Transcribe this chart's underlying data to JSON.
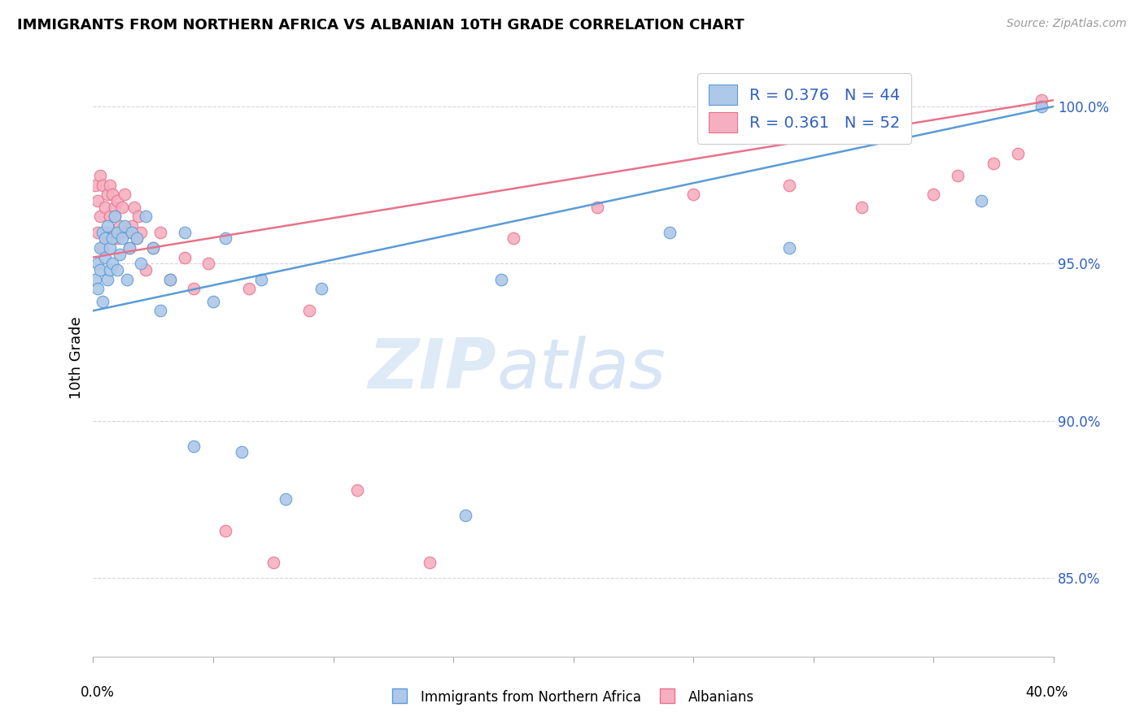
{
  "title": "IMMIGRANTS FROM NORTHERN AFRICA VS ALBANIAN 10TH GRADE CORRELATION CHART",
  "source": "Source: ZipAtlas.com",
  "ylabel": "10th Grade",
  "yticks": [
    85.0,
    90.0,
    95.0,
    100.0
  ],
  "xlim": [
    0.0,
    0.4
  ],
  "ylim": [
    0.825,
    1.015
  ],
  "legend_blue_R": "0.376",
  "legend_blue_N": "44",
  "legend_pink_R": "0.361",
  "legend_pink_N": "52",
  "legend_blue_label": "Immigrants from Northern Africa",
  "legend_pink_label": "Albanians",
  "blue_fill": "#adc8e8",
  "pink_fill": "#f5afc0",
  "blue_edge": "#5b9bd5",
  "pink_edge": "#e8728a",
  "blue_line": "#5b9bd5",
  "pink_line": "#e8728a",
  "legend_text_color": "#3060c0",
  "watermark_zip": "ZIP",
  "watermark_atlas": "atlas",
  "blue_scatter_x": [
    0.001,
    0.002,
    0.002,
    0.003,
    0.003,
    0.004,
    0.004,
    0.005,
    0.005,
    0.006,
    0.006,
    0.007,
    0.007,
    0.008,
    0.008,
    0.009,
    0.01,
    0.01,
    0.011,
    0.012,
    0.013,
    0.014,
    0.015,
    0.016,
    0.018,
    0.02,
    0.022,
    0.025,
    0.028,
    0.032,
    0.038,
    0.042,
    0.05,
    0.055,
    0.062,
    0.07,
    0.08,
    0.095,
    0.155,
    0.17,
    0.24,
    0.29,
    0.37,
    0.395
  ],
  "blue_scatter_y": [
    0.945,
    0.95,
    0.942,
    0.955,
    0.948,
    0.96,
    0.938,
    0.952,
    0.958,
    0.945,
    0.962,
    0.955,
    0.948,
    0.95,
    0.958,
    0.965,
    0.948,
    0.96,
    0.953,
    0.958,
    0.962,
    0.945,
    0.955,
    0.96,
    0.958,
    0.95,
    0.965,
    0.955,
    0.935,
    0.945,
    0.96,
    0.892,
    0.938,
    0.958,
    0.89,
    0.945,
    0.875,
    0.942,
    0.87,
    0.945,
    0.96,
    0.955,
    0.97,
    1.0
  ],
  "pink_scatter_x": [
    0.001,
    0.002,
    0.002,
    0.003,
    0.003,
    0.004,
    0.004,
    0.005,
    0.005,
    0.006,
    0.006,
    0.007,
    0.007,
    0.008,
    0.008,
    0.009,
    0.009,
    0.01,
    0.01,
    0.011,
    0.012,
    0.013,
    0.014,
    0.015,
    0.016,
    0.017,
    0.018,
    0.019,
    0.02,
    0.022,
    0.025,
    0.028,
    0.032,
    0.038,
    0.042,
    0.048,
    0.055,
    0.065,
    0.075,
    0.09,
    0.11,
    0.14,
    0.175,
    0.21,
    0.25,
    0.29,
    0.32,
    0.35,
    0.36,
    0.375,
    0.385,
    0.395
  ],
  "pink_scatter_y": [
    0.975,
    0.97,
    0.96,
    0.978,
    0.965,
    0.975,
    0.955,
    0.968,
    0.958,
    0.972,
    0.96,
    0.975,
    0.965,
    0.972,
    0.958,
    0.968,
    0.965,
    0.97,
    0.958,
    0.962,
    0.968,
    0.972,
    0.96,
    0.955,
    0.962,
    0.968,
    0.958,
    0.965,
    0.96,
    0.948,
    0.955,
    0.96,
    0.945,
    0.952,
    0.942,
    0.95,
    0.865,
    0.942,
    0.855,
    0.935,
    0.878,
    0.855,
    0.958,
    0.968,
    0.972,
    0.975,
    0.968,
    0.972,
    0.978,
    0.982,
    0.985,
    1.002
  ]
}
